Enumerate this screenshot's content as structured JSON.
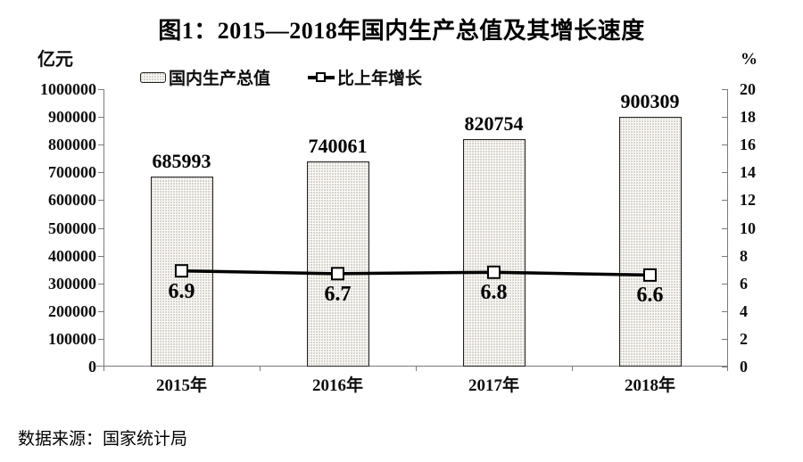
{
  "page": {
    "title": "图1：2015—2018年国内生产总值及其增长速度",
    "source_note": "数据来源：国家统计局"
  },
  "legend": {
    "bar_label": "国内生产总值",
    "line_label": "比上年增长"
  },
  "axes": {
    "left_unit": "亿元",
    "right_unit": "%",
    "left_ticks": [
      "1000000",
      "900000",
      "800000",
      "700000",
      "600000",
      "500000",
      "400000",
      "300000",
      "200000",
      "100000",
      "0"
    ],
    "right_ticks": [
      "20",
      "18",
      "16",
      "14",
      "12",
      "10",
      "8",
      "6",
      "4",
      "2",
      "0"
    ]
  },
  "chart_data": {
    "type": "bar",
    "combo": "bar+line",
    "title": "图1：2015—2018年国内生产总值及其增长速度",
    "categories": [
      "2015年",
      "2016年",
      "2017年",
      "2018年"
    ],
    "series": [
      {
        "name": "国内生产总值",
        "type": "bar",
        "axis": "left",
        "unit": "亿元",
        "values": [
          685993,
          740061,
          820754,
          900309
        ]
      },
      {
        "name": "比上年增长",
        "type": "line",
        "axis": "right",
        "unit": "%",
        "values": [
          6.9,
          6.7,
          6.8,
          6.6
        ]
      }
    ],
    "left_axis": {
      "label": "亿元",
      "min": 0,
      "max": 1000000,
      "step": 100000
    },
    "right_axis": {
      "label": "%",
      "min": 0,
      "max": 20,
      "step": 2
    },
    "legend_position": "top",
    "grid": false,
    "source": "数据来源：国家统计局"
  },
  "colors": {
    "text": "#000000",
    "axis": "#7a7a7a",
    "bar_fill": "#fbfaf8",
    "bar_dot": "#c9c5bd",
    "bar_border": "#1f1f1f",
    "line": "#000000",
    "marker_fill": "#ffffff"
  }
}
